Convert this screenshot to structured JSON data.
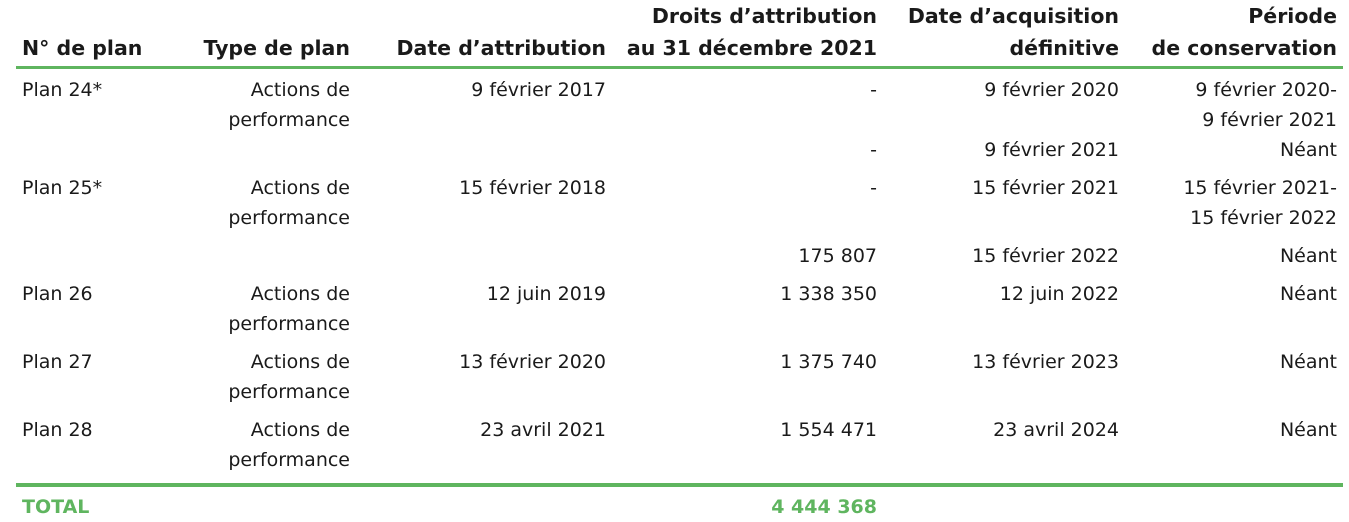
{
  "headers": {
    "plan_no": "N° de plan",
    "plan_type": "Type de plan",
    "grant_date": "Date d’attribution",
    "rights_line1": "Droits d’attribution",
    "rights_line2": "au 31 décembre 2021",
    "acq_line1": "Date d’acquisition",
    "acq_line2": "définitive",
    "cons_line1": "Période",
    "cons_line2": "de conservation"
  },
  "rows": [
    {
      "plan": "Plan 24*",
      "type1": "Actions de",
      "type2": "performance",
      "grant_date": "9 février 2017",
      "rights": "-",
      "acq_date": "9 février 2020",
      "cons1": "9 février 2020-",
      "cons2": "9 février 2021"
    },
    {
      "plan": "",
      "type1": "",
      "type2": "",
      "grant_date": "",
      "rights": "-",
      "acq_date": "9 février 2021",
      "cons1": "Néant",
      "cons2": ""
    },
    {
      "plan": "Plan 25*",
      "type1": "Actions de",
      "type2": "performance",
      "grant_date": "15 février 2018",
      "rights": "-",
      "acq_date": "15 février 2021",
      "cons1": "15 février 2021-",
      "cons2": "15 février 2022"
    },
    {
      "plan": "",
      "type1": "",
      "type2": "",
      "grant_date": "",
      "rights": "175 807",
      "acq_date": "15 février 2022",
      "cons1": "Néant",
      "cons2": ""
    },
    {
      "plan": "Plan 26",
      "type1": "Actions de",
      "type2": "performance",
      "grant_date": "12 juin 2019",
      "rights": "1 338 350",
      "acq_date": "12 juin 2022",
      "cons1": "Néant",
      "cons2": ""
    },
    {
      "plan": "Plan 27",
      "type1": "Actions de",
      "type2": "performance",
      "grant_date": "13 février 2020",
      "rights": "1 375 740",
      "acq_date": "13 février 2023",
      "cons1": "Néant",
      "cons2": ""
    },
    {
      "plan": "Plan 28",
      "type1": "Actions de",
      "type2": "performance",
      "grant_date": "23 avril 2021",
      "rights": "1 554 471",
      "acq_date": "23 avril 2024",
      "cons1": "Néant",
      "cons2": ""
    }
  ],
  "total": {
    "label": "TOTAL",
    "value": "4 444 368"
  },
  "colors": {
    "accent": "#5fb55f",
    "text": "#1a1a1a"
  }
}
